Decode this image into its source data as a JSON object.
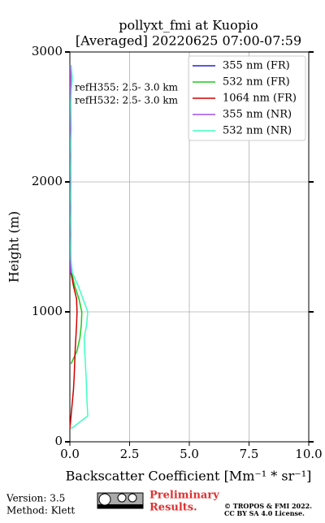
{
  "chart_data": {
    "type": "line",
    "title": "pollyxt_fmi at Kuopio",
    "subtitle": "[Averaged] 20220625 07:00-07:59",
    "xlabel": "Backscatter Coefficient [Mm⁻¹ * sr⁻¹]",
    "ylabel": "Height (m)",
    "annotations": [
      "refH355:  2.5- 3.0 km",
      "refH532:  2.5- 3.0 km"
    ],
    "y": [
      100,
      200,
      300,
      400,
      500,
      600,
      700,
      800,
      900,
      1000,
      1100,
      1200,
      1300,
      1400,
      1500,
      1600,
      1700,
      1800,
      1900,
      2000,
      2100,
      2200,
      2300,
      2400,
      2500,
      2600,
      2700,
      2800,
      2900
    ],
    "series": [
      {
        "name": "355 nm (FR)",
        "color": "#2020e0",
        "values": [
          null,
          null,
          null,
          null,
          null,
          null,
          null,
          null,
          null,
          null,
          null,
          null,
          0.03,
          0.02,
          0.02,
          0.02,
          0.02,
          0.02,
          0.02,
          0.02,
          0.02,
          0.02,
          0.02,
          0.02,
          0.02,
          0.02,
          0.02,
          0.02,
          0.02
        ]
      },
      {
        "name": "532 nm (FR)",
        "color": "#1ec81e",
        "values": [
          null,
          null,
          null,
          null,
          null,
          0.05,
          0.3,
          0.42,
          0.48,
          0.5,
          0.38,
          0.2,
          0.08,
          0.04,
          0.04,
          0.04,
          0.04,
          0.04,
          0.04,
          0.04,
          0.04,
          0.04,
          0.04,
          0.04,
          0.04,
          0.04,
          0.04,
          0.04,
          0.04
        ]
      },
      {
        "name": "1064 nm (FR)",
        "color": "#d00000",
        "values": [
          0.0,
          0.05,
          0.1,
          0.15,
          0.18,
          0.2,
          0.22,
          0.25,
          0.28,
          0.3,
          0.28,
          0.15,
          0.05,
          0.02,
          0.02,
          0.02,
          0.02,
          0.02,
          0.02,
          0.02,
          0.02,
          0.02,
          0.02,
          0.02,
          0.02,
          0.02,
          0.02,
          0.02,
          0.02
        ]
      },
      {
        "name": "355 nm (NR)",
        "color": "#a050e0",
        "values": [
          null,
          null,
          null,
          null,
          null,
          null,
          null,
          null,
          null,
          null,
          null,
          null,
          0.03,
          0.03,
          0.03,
          0.03,
          0.03,
          0.03,
          0.03,
          0.03,
          0.03,
          0.03,
          0.03,
          0.03,
          0.03,
          0.03,
          0.03,
          0.03,
          0.03
        ]
      },
      {
        "name": "532 nm (NR)",
        "color": "#40ffc0",
        "values": [
          0.05,
          0.75,
          0.72,
          0.7,
          0.68,
          0.65,
          0.62,
          0.6,
          0.7,
          0.75,
          0.55,
          0.35,
          0.1,
          0.05,
          0.04,
          0.05,
          0.04,
          0.05,
          0.04,
          0.05,
          0.04,
          0.05,
          0.04,
          0.06,
          0.05,
          0.04,
          0.06,
          0.1,
          0.05
        ]
      }
    ],
    "xlim": [
      0,
      10
    ],
    "xticks": [
      {
        "value": 0,
        "label": "0.0"
      },
      2.5,
      {
        "value": 5,
        "label": "5.0"
      },
      7.5,
      {
        "value": 10,
        "label": "10.0"
      }
    ],
    "ylim": [
      0,
      3000
    ],
    "yticks": [
      0,
      1000,
      2000,
      3000
    ],
    "grid": true,
    "legend": "upper right"
  },
  "footer": {
    "version": "Version: 3.5",
    "method": "Method: Klett",
    "preliminary": [
      "Preliminary",
      "Results."
    ],
    "copyright": [
      "© TROPOS & FMI 2022.",
      "CC BY SA 4.0 License."
    ]
  }
}
